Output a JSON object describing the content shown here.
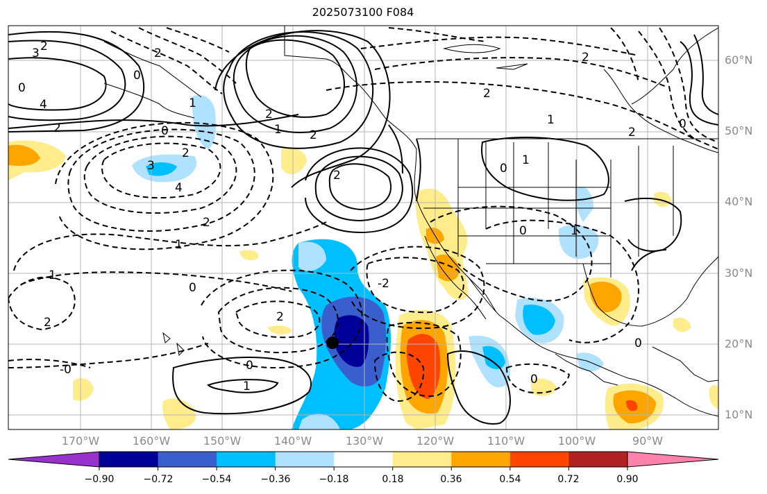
{
  "title": "2025073100 F084",
  "latitude_labels": [
    "60°N",
    "50°N",
    "40°N",
    "30°N",
    "20°N",
    "10°N"
  ],
  "longitude_labels": [
    "170°W",
    "160°W",
    "150°W",
    "140°W",
    "130°W",
    "120°W",
    "110°W",
    "100°W",
    "90°W"
  ],
  "contour_labels": [
    "2",
    "3",
    "0",
    "4",
    "2",
    "0",
    "1",
    "1",
    "2",
    "2",
    "3",
    "2",
    "4",
    "2",
    "1",
    "0",
    "2",
    "0",
    "2",
    "1",
    "0",
    "1",
    "2",
    "2",
    "1",
    "0",
    "2",
    "-2",
    "0",
    "1",
    "2",
    "1",
    "-0",
    "0",
    "0",
    "0",
    "2"
  ],
  "colorbar": {
    "ticks": [
      "−0.90",
      "−0.72",
      "−0.54",
      "−0.36",
      "−0.18",
      "0.18",
      "0.36",
      "0.54",
      "0.72",
      "0.90"
    ],
    "colors": [
      "#9932cc",
      "#000099",
      "#3a5fcd",
      "#00bfff",
      "#b0e2ff",
      "#ffffff",
      "#ffec8b",
      "#ffa500",
      "#ff4500",
      "#b22222",
      "#ff82ab"
    ]
  },
  "marker": {
    "symbol": "black-dot"
  }
}
